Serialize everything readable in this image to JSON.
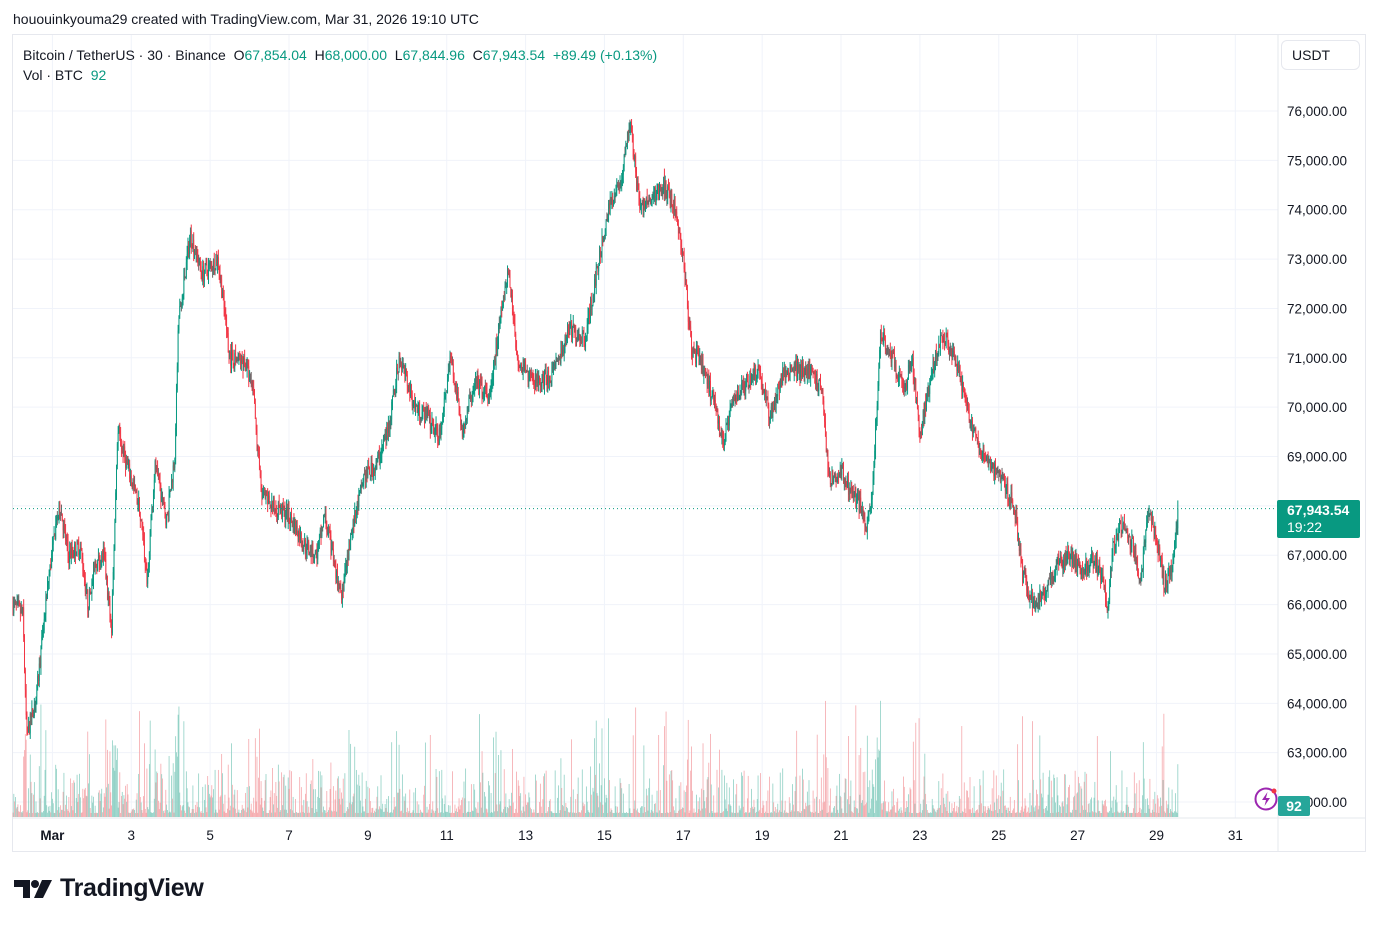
{
  "credit": "hououinkyouma29 created with TradingView.com, Mar 31, 2026 19:10 UTC",
  "legend": {
    "symbol": "Bitcoin / TetherUS · 30 · Binance",
    "open_label": "O",
    "open": "67,854.04",
    "high_label": "H",
    "high": "68,000.00",
    "low_label": "L",
    "low": "67,844.96",
    "close_label": "C",
    "close": "67,943.54",
    "change": "+89.49 (+0.13%)",
    "volume_label": "Vol · BTC",
    "volume": "92"
  },
  "currency_button": "USDT",
  "price_tag": {
    "price": "67,943.54",
    "countdown": "19:22"
  },
  "volume_tag": "92",
  "logo_text": "TradingView",
  "colors": {
    "up": "#089981",
    "down": "#f23645",
    "neutral_candle": "#6d6465",
    "vol_up": "#8fd0c4",
    "vol_down": "#f5a8ac",
    "grid": "#f0f3fa",
    "price_line": "#089981"
  },
  "chart_data": {
    "type": "candlestick",
    "title": "Bitcoin / TetherUS · 30 · Binance",
    "interval": "30m",
    "xlabel": "",
    "ylabel": "USDT",
    "ylim": [
      62000,
      76000
    ],
    "y_ticks": [
      "76,000.00",
      "75,000.00",
      "74,000.00",
      "73,000.00",
      "72,000.00",
      "71,000.00",
      "70,000.00",
      "69,000.00",
      "67,000.00",
      "66,000.00",
      "65,000.00",
      "64,000.00",
      "63,000.00",
      "62,000.00"
    ],
    "x_ticks": [
      "Mar",
      "3",
      "5",
      "7",
      "9",
      "11",
      "13",
      "15",
      "17",
      "19",
      "21",
      "23",
      "25",
      "27",
      "29",
      "31"
    ],
    "last_price": 67943.54,
    "grid": true,
    "price_path": [
      {
        "day": 0.0,
        "price": 66000
      },
      {
        "day": 0.25,
        "price": 65800
      },
      {
        "day": 0.35,
        "price": 63300
      },
      {
        "day": 0.6,
        "price": 64200
      },
      {
        "day": 0.9,
        "price": 66500
      },
      {
        "day": 1.1,
        "price": 67700
      },
      {
        "day": 1.2,
        "price": 68000
      },
      {
        "day": 1.4,
        "price": 67000
      },
      {
        "day": 1.7,
        "price": 67200
      },
      {
        "day": 1.9,
        "price": 66000
      },
      {
        "day": 2.1,
        "price": 66800
      },
      {
        "day": 2.3,
        "price": 67000
      },
      {
        "day": 2.5,
        "price": 65500
      },
      {
        "day": 2.65,
        "price": 69500
      },
      {
        "day": 2.9,
        "price": 68800
      },
      {
        "day": 3.2,
        "price": 68000
      },
      {
        "day": 3.4,
        "price": 66500
      },
      {
        "day": 3.6,
        "price": 68800
      },
      {
        "day": 3.9,
        "price": 67700
      },
      {
        "day": 4.1,
        "price": 69000
      },
      {
        "day": 4.2,
        "price": 71800
      },
      {
        "day": 4.5,
        "price": 73500
      },
      {
        "day": 4.8,
        "price": 72700
      },
      {
        "day": 5.2,
        "price": 73000
      },
      {
        "day": 5.5,
        "price": 71000
      },
      {
        "day": 5.9,
        "price": 70900
      },
      {
        "day": 6.1,
        "price": 70200
      },
      {
        "day": 6.3,
        "price": 68200
      },
      {
        "day": 6.6,
        "price": 68000
      },
      {
        "day": 7.0,
        "price": 67800
      },
      {
        "day": 7.4,
        "price": 67200
      },
      {
        "day": 7.7,
        "price": 67000
      },
      {
        "day": 7.9,
        "price": 67800
      },
      {
        "day": 8.2,
        "price": 66600
      },
      {
        "day": 8.35,
        "price": 66200
      },
      {
        "day": 8.6,
        "price": 67500
      },
      {
        "day": 8.9,
        "price": 68600
      },
      {
        "day": 9.2,
        "price": 68800
      },
      {
        "day": 9.5,
        "price": 69500
      },
      {
        "day": 9.8,
        "price": 71000
      },
      {
        "day": 10.2,
        "price": 70000
      },
      {
        "day": 10.5,
        "price": 69800
      },
      {
        "day": 10.8,
        "price": 69400
      },
      {
        "day": 11.1,
        "price": 71000
      },
      {
        "day": 11.4,
        "price": 69500
      },
      {
        "day": 11.7,
        "price": 70500
      },
      {
        "day": 12.1,
        "price": 70200
      },
      {
        "day": 12.3,
        "price": 71500
      },
      {
        "day": 12.55,
        "price": 72800
      },
      {
        "day": 12.8,
        "price": 71000
      },
      {
        "day": 13.1,
        "price": 70600
      },
      {
        "day": 13.4,
        "price": 70500
      },
      {
        "day": 13.8,
        "price": 70800
      },
      {
        "day": 14.1,
        "price": 71600
      },
      {
        "day": 14.5,
        "price": 71400
      },
      {
        "day": 14.8,
        "price": 72700
      },
      {
        "day": 15.1,
        "price": 74000
      },
      {
        "day": 15.4,
        "price": 74500
      },
      {
        "day": 15.65,
        "price": 75800
      },
      {
        "day": 15.9,
        "price": 74000
      },
      {
        "day": 16.2,
        "price": 74200
      },
      {
        "day": 16.5,
        "price": 74500
      },
      {
        "day": 16.8,
        "price": 74000
      },
      {
        "day": 17.0,
        "price": 73000
      },
      {
        "day": 17.2,
        "price": 71200
      },
      {
        "day": 17.5,
        "price": 70800
      },
      {
        "day": 17.8,
        "price": 70000
      },
      {
        "day": 18.0,
        "price": 69300
      },
      {
        "day": 18.3,
        "price": 70200
      },
      {
        "day": 18.6,
        "price": 70500
      },
      {
        "day": 18.9,
        "price": 70800
      },
      {
        "day": 19.2,
        "price": 69800
      },
      {
        "day": 19.5,
        "price": 70600
      },
      {
        "day": 19.8,
        "price": 70800
      },
      {
        "day": 20.2,
        "price": 70700
      },
      {
        "day": 20.5,
        "price": 70400
      },
      {
        "day": 20.7,
        "price": 68500
      },
      {
        "day": 21.0,
        "price": 68700
      },
      {
        "day": 21.3,
        "price": 68200
      },
      {
        "day": 21.5,
        "price": 68000
      },
      {
        "day": 21.65,
        "price": 67600
      },
      {
        "day": 21.8,
        "price": 68300
      },
      {
        "day": 22.0,
        "price": 71500
      },
      {
        "day": 22.3,
        "price": 71000
      },
      {
        "day": 22.6,
        "price": 70300
      },
      {
        "day": 22.8,
        "price": 71000
      },
      {
        "day": 23.0,
        "price": 69400
      },
      {
        "day": 23.3,
        "price": 70700
      },
      {
        "day": 23.6,
        "price": 71500
      },
      {
        "day": 23.9,
        "price": 71000
      },
      {
        "day": 24.2,
        "price": 70000
      },
      {
        "day": 24.5,
        "price": 69200
      },
      {
        "day": 24.8,
        "price": 68800
      },
      {
        "day": 25.1,
        "price": 68500
      },
      {
        "day": 25.4,
        "price": 68000
      },
      {
        "day": 25.6,
        "price": 66600
      },
      {
        "day": 25.9,
        "price": 66000
      },
      {
        "day": 26.2,
        "price": 66300
      },
      {
        "day": 26.5,
        "price": 66800
      },
      {
        "day": 26.8,
        "price": 67000
      },
      {
        "day": 27.1,
        "price": 66700
      },
      {
        "day": 27.4,
        "price": 66900
      },
      {
        "day": 27.6,
        "price": 66600
      },
      {
        "day": 27.75,
        "price": 65900
      },
      {
        "day": 27.9,
        "price": 67200
      },
      {
        "day": 28.1,
        "price": 67600
      },
      {
        "day": 28.4,
        "price": 67200
      },
      {
        "day": 28.6,
        "price": 66500
      },
      {
        "day": 28.8,
        "price": 67900
      },
      {
        "day": 29.0,
        "price": 67400
      },
      {
        "day": 29.2,
        "price": 66400
      },
      {
        "day": 29.4,
        "price": 66700
      },
      {
        "day": 29.55,
        "price": 67944
      }
    ],
    "annotations": [
      "67,943.54 last price",
      "19:22 bar countdown",
      "Vol 92"
    ]
  }
}
